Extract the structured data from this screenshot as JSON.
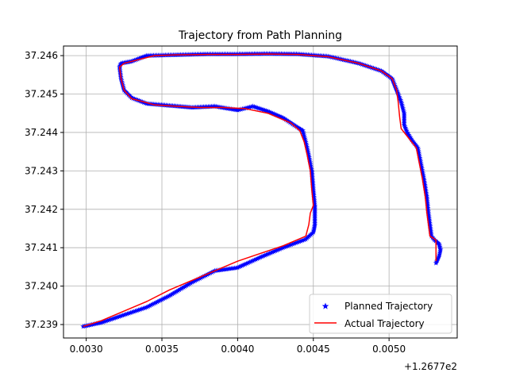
{
  "chart_data": {
    "type": "line",
    "title": "Trajectory from Path Planning",
    "xlabel": "",
    "ylabel": "",
    "x_offset_label": "+1.2677e2",
    "xlim": [
      0.00285,
      0.00545
    ],
    "ylim": [
      37.23865,
      37.24625
    ],
    "x_ticks": [
      {
        "value": 0.003,
        "label": "0.0030"
      },
      {
        "value": 0.0035,
        "label": "0.0035"
      },
      {
        "value": 0.004,
        "label": "0.0040"
      },
      {
        "value": 0.0045,
        "label": "0.0045"
      },
      {
        "value": 0.005,
        "label": "0.0050"
      }
    ],
    "y_ticks": [
      {
        "value": 37.239,
        "label": "37.239"
      },
      {
        "value": 37.24,
        "label": "37.240"
      },
      {
        "value": 37.241,
        "label": "37.241"
      },
      {
        "value": 37.242,
        "label": "37.242"
      },
      {
        "value": 37.243,
        "label": "37.243"
      },
      {
        "value": 37.244,
        "label": "37.244"
      },
      {
        "value": 37.245,
        "label": "37.245"
      },
      {
        "value": 37.246,
        "label": "37.246"
      }
    ],
    "grid": true,
    "legend_position": "lower right",
    "series": [
      {
        "name": "Planned Trajectory",
        "kind": "scatter",
        "marker": "star",
        "color": "#0000ff",
        "points": [
          [
            0.00298,
            37.23895
          ],
          [
            0.0031,
            37.23905
          ],
          [
            0.00325,
            37.23925
          ],
          [
            0.0034,
            37.23945
          ],
          [
            0.00355,
            37.23975
          ],
          [
            0.0037,
            37.2401
          ],
          [
            0.00385,
            37.2404
          ],
          [
            0.004,
            37.24048
          ],
          [
            0.00415,
            37.24075
          ],
          [
            0.0043,
            37.241
          ],
          [
            0.00445,
            37.24122
          ],
          [
            0.0045,
            37.2414
          ],
          [
            0.00451,
            37.2416
          ],
          [
            0.00451,
            37.2419
          ],
          [
            0.00451,
            37.2421
          ],
          [
            0.0045,
            37.2425
          ],
          [
            0.00449,
            37.243
          ],
          [
            0.00447,
            37.2434
          ],
          [
            0.00445,
            37.24375
          ],
          [
            0.00443,
            37.24405
          ],
          [
            0.0044,
            37.24412
          ],
          [
            0.0043,
            37.24438
          ],
          [
            0.0042,
            37.24455
          ],
          [
            0.0041,
            37.24468
          ],
          [
            0.004,
            37.24458
          ],
          [
            0.00385,
            37.24468
          ],
          [
            0.0037,
            37.24465
          ],
          [
            0.00355,
            37.2447
          ],
          [
            0.0034,
            37.24475
          ],
          [
            0.0033,
            37.2449
          ],
          [
            0.00325,
            37.2451
          ],
          [
            0.00323,
            37.2454
          ],
          [
            0.00322,
            37.2457
          ],
          [
            0.00323,
            37.2458
          ],
          [
            0.0033,
            37.24585
          ],
          [
            0.0034,
            37.246
          ],
          [
            0.0036,
            37.24602
          ],
          [
            0.0038,
            37.24604
          ],
          [
            0.004,
            37.24604
          ],
          [
            0.0042,
            37.24605
          ],
          [
            0.0044,
            37.24604
          ],
          [
            0.0046,
            37.24598
          ],
          [
            0.0048,
            37.2458
          ],
          [
            0.00495,
            37.2456
          ],
          [
            0.00502,
            37.2454
          ],
          [
            0.00505,
            37.2451
          ],
          [
            0.00506,
            37.245
          ],
          [
            0.00508,
            37.2448
          ],
          [
            0.0051,
            37.2445
          ],
          [
            0.0051,
            37.2442
          ],
          [
            0.00512,
            37.244
          ],
          [
            0.00515,
            37.2438
          ],
          [
            0.00519,
            37.2436
          ],
          [
            0.00521,
            37.2432
          ],
          [
            0.00523,
            37.2428
          ],
          [
            0.00525,
            37.2423
          ],
          [
            0.00526,
            37.2419
          ],
          [
            0.00527,
            37.2416
          ],
          [
            0.00528,
            37.2413
          ],
          [
            0.0053,
            37.2412
          ],
          [
            0.00533,
            37.2411
          ],
          [
            0.00534,
            37.24095
          ],
          [
            0.00533,
            37.24078
          ],
          [
            0.00531,
            37.2406
          ]
        ]
      },
      {
        "name": "Actual Trajectory",
        "kind": "line",
        "color": "#ff0000",
        "points": [
          [
            0.00298,
            37.23895
          ],
          [
            0.0031,
            37.2391
          ],
          [
            0.00325,
            37.23935
          ],
          [
            0.0034,
            37.2396
          ],
          [
            0.00355,
            37.2399
          ],
          [
            0.0037,
            37.24015
          ],
          [
            0.00385,
            37.2404
          ],
          [
            0.004,
            37.24065
          ],
          [
            0.00415,
            37.24085
          ],
          [
            0.0043,
            37.24105
          ],
          [
            0.00445,
            37.2413
          ],
          [
            0.00447,
            37.2416
          ],
          [
            0.00448,
            37.2419
          ],
          [
            0.0045,
            37.2421
          ],
          [
            0.00449,
            37.2425
          ],
          [
            0.00448,
            37.243
          ],
          [
            0.00446,
            37.2434
          ],
          [
            0.00444,
            37.24375
          ],
          [
            0.00441,
            37.24405
          ],
          [
            0.00435,
            37.24425
          ],
          [
            0.0042,
            37.2445
          ],
          [
            0.00405,
            37.24462
          ],
          [
            0.0039,
            37.24465
          ],
          [
            0.00375,
            37.24465
          ],
          [
            0.0036,
            37.24468
          ],
          [
            0.00345,
            37.24472
          ],
          [
            0.0033,
            37.24488
          ],
          [
            0.00325,
            37.2451
          ],
          [
            0.00323,
            37.2454
          ],
          [
            0.00322,
            37.2457
          ],
          [
            0.00325,
            37.2458
          ],
          [
            0.00335,
            37.2459
          ],
          [
            0.00345,
            37.246
          ],
          [
            0.0036,
            37.24602
          ],
          [
            0.0038,
            37.24603
          ],
          [
            0.004,
            37.24603
          ],
          [
            0.0042,
            37.24604
          ],
          [
            0.0044,
            37.24603
          ],
          [
            0.0046,
            37.24597
          ],
          [
            0.0048,
            37.2458
          ],
          [
            0.00495,
            37.2456
          ],
          [
            0.00502,
            37.2454
          ],
          [
            0.00505,
            37.2451
          ],
          [
            0.00506,
            37.2448
          ],
          [
            0.00507,
            37.2444
          ],
          [
            0.00508,
            37.2441
          ],
          [
            0.00512,
            37.2439
          ],
          [
            0.00518,
            37.2436
          ],
          [
            0.0052,
            37.2432
          ],
          [
            0.00522,
            37.2428
          ],
          [
            0.00524,
            37.2423
          ],
          [
            0.00525,
            37.2419
          ],
          [
            0.00526,
            37.2416
          ],
          [
            0.00527,
            37.2413
          ],
          [
            0.00531,
            37.2412
          ],
          [
            0.00531,
            37.241
          ],
          [
            0.00531,
            37.2408
          ],
          [
            0.00531,
            37.24065
          ]
        ]
      }
    ]
  }
}
